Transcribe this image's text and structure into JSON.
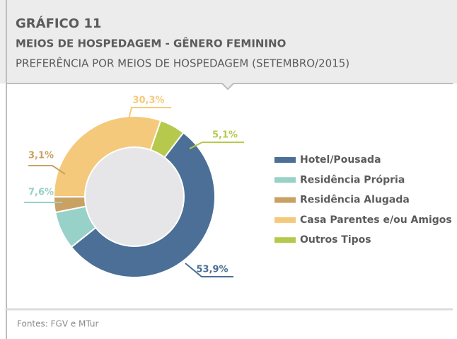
{
  "header": {
    "number": "GRÁFICO 11",
    "title": "MEIOS DE HOSPEDAGEM - GÊNERO FEMININO",
    "subtitle": "PREFERÊNCIA POR MEIOS DE HOSPEDAGEM (SETEMBRO/2015)"
  },
  "chart_data": {
    "type": "donut",
    "categories": [
      "Hotel/Pousada",
      "Residência Própria",
      "Residência Alugada",
      "Casa Parentes e/ou Amigos",
      "Outros Tipos"
    ],
    "values": [
      53.9,
      7.6,
      3.1,
      30.3,
      5.1
    ],
    "value_labels": [
      "53,9%",
      "7,6%",
      "3,1%",
      "30,3%",
      "5,1%"
    ],
    "colors": [
      "#4b6f96",
      "#97d1c8",
      "#c9a163",
      "#f5c97b",
      "#b6c94c"
    ]
  },
  "footer": {
    "source": "Fontes: FGV e MTur"
  }
}
